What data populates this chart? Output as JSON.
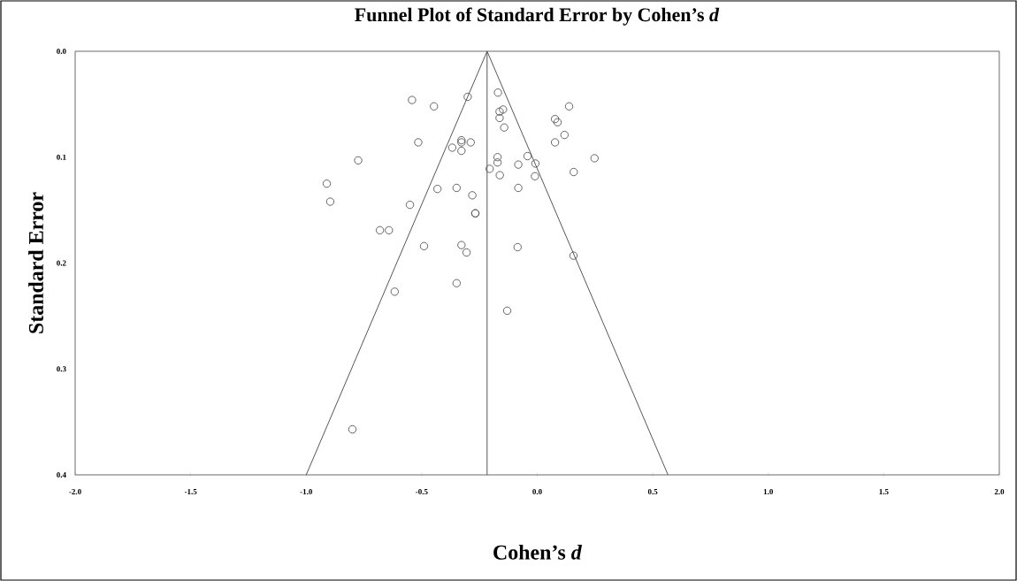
{
  "chart_data": {
    "type": "scatter",
    "title": "Funnel Plot of Standard Error by Cohen’s *d*",
    "xlabel": "Cohen’s *d*",
    "ylabel": "Standard Error",
    "xlim": [
      -2.0,
      2.0
    ],
    "ylim": [
      0.4,
      0.0
    ],
    "xticks": [
      {
        "value": -2.0,
        "label": "-2.0"
      },
      {
        "value": -1.5,
        "label": "-1.5"
      },
      {
        "value": -1.0,
        "label": "-1.0"
      },
      {
        "value": -0.5,
        "label": "-0.5"
      },
      {
        "value": 0.0,
        "label": "0.0"
      },
      {
        "value": 0.5,
        "label": "0.5"
      },
      {
        "value": 1.0,
        "label": "1.0"
      },
      {
        "value": 1.5,
        "label": "1.5"
      },
      {
        "value": 2.0,
        "label": "2.0"
      }
    ],
    "yticks": [
      {
        "value": 0.0,
        "label": "0.0"
      },
      {
        "value": 0.1,
        "label": "0.1"
      },
      {
        "value": 0.2,
        "label": "0.2"
      },
      {
        "value": 0.3,
        "label": "0.3"
      },
      {
        "value": 0.4,
        "label": "0.4"
      }
    ],
    "grid": false,
    "ref_lines": [
      {
        "axis": "x",
        "value": -0.217,
        "color": "#555555"
      }
    ],
    "series": [
      {
        "marker": "circle",
        "color": "#555555",
        "x": [
          -0.542,
          -0.447,
          -0.301,
          -0.515,
          -0.328,
          -0.328,
          -0.288,
          -0.368,
          -0.328,
          -0.775,
          -0.911,
          -0.896,
          -0.432,
          -0.349,
          -0.281,
          -0.551,
          -0.268,
          -0.268,
          -0.17,
          -0.163,
          -0.148,
          -0.163,
          -0.143,
          0.138,
          0.077,
          0.088,
          0.118,
          0.077,
          0.248,
          -0.172,
          -0.172,
          -0.042,
          -0.082,
          -0.008,
          -0.206,
          -0.162,
          0.158,
          -0.01,
          -0.082,
          -0.681,
          -0.642,
          -0.49,
          -0.328,
          -0.306,
          -0.085,
          0.157,
          -0.617,
          -0.349,
          -0.13,
          -0.8
        ],
        "values": [
          0.046,
          0.052,
          0.043,
          0.086,
          0.084,
          0.086,
          0.086,
          0.091,
          0.094,
          0.103,
          0.125,
          0.142,
          0.13,
          0.129,
          0.136,
          0.145,
          0.153,
          0.153,
          0.039,
          0.057,
          0.055,
          0.063,
          0.072,
          0.052,
          0.064,
          0.067,
          0.079,
          0.086,
          0.101,
          0.1,
          0.105,
          0.099,
          0.107,
          0.106,
          0.111,
          0.117,
          0.114,
          0.118,
          0.129,
          0.169,
          0.169,
          0.184,
          0.183,
          0.19,
          0.185,
          0.193,
          0.227,
          0.219,
          0.245,
          0.357
        ]
      },
      {
        "type": "line",
        "color": "#555555",
        "x": [
          -1.0,
          -0.217,
          0.566
        ],
        "values": [
          0.4,
          0.0,
          0.4
        ]
      }
    ]
  }
}
